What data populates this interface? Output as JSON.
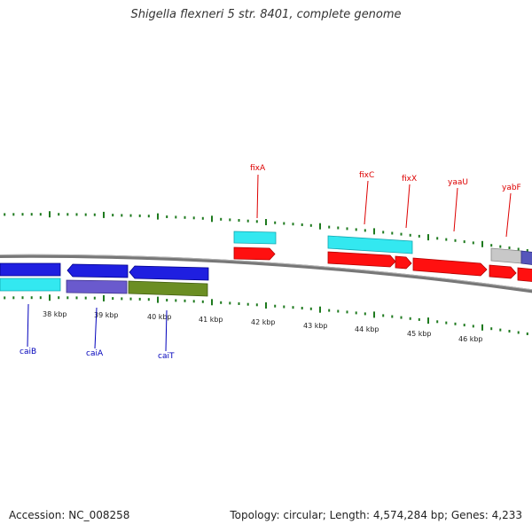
{
  "header": {
    "title": "Shigella flexneri 5 str. 8401, complete genome"
  },
  "footer": {
    "accession": "Accession: NC_008258",
    "stats": "Topology: circular; Length: 4,574,284 bp; Genes: 4,233"
  },
  "colors": {
    "backbone": "#808080",
    "ticks": "#1e7a1e",
    "red": "#ff0000",
    "blue": "#1f1fe0",
    "cyan": "#33e8f0",
    "purple": "#6a5acd",
    "olive": "#6b8e23",
    "gray": "#c8c8c8",
    "label_red": "#dd0000",
    "label_blue": "#0000bb"
  },
  "ruler": [
    "38 kbp",
    "39 kbp",
    "40 kbp",
    "41 kbp",
    "42 kbp",
    "43 kbp",
    "44 kbp",
    "45 kbp",
    "46 kbp"
  ],
  "gene_labels": [
    {
      "name": "fixA",
      "side": "top"
    },
    {
      "name": "fixC",
      "side": "top"
    },
    {
      "name": "fixX",
      "side": "top"
    },
    {
      "name": "yaaU",
      "side": "top"
    },
    {
      "name": "yabF",
      "side": "top"
    },
    {
      "name": "caiB",
      "side": "bottom"
    },
    {
      "name": "caiA",
      "side": "bottom"
    },
    {
      "name": "caiT",
      "side": "bottom"
    }
  ]
}
